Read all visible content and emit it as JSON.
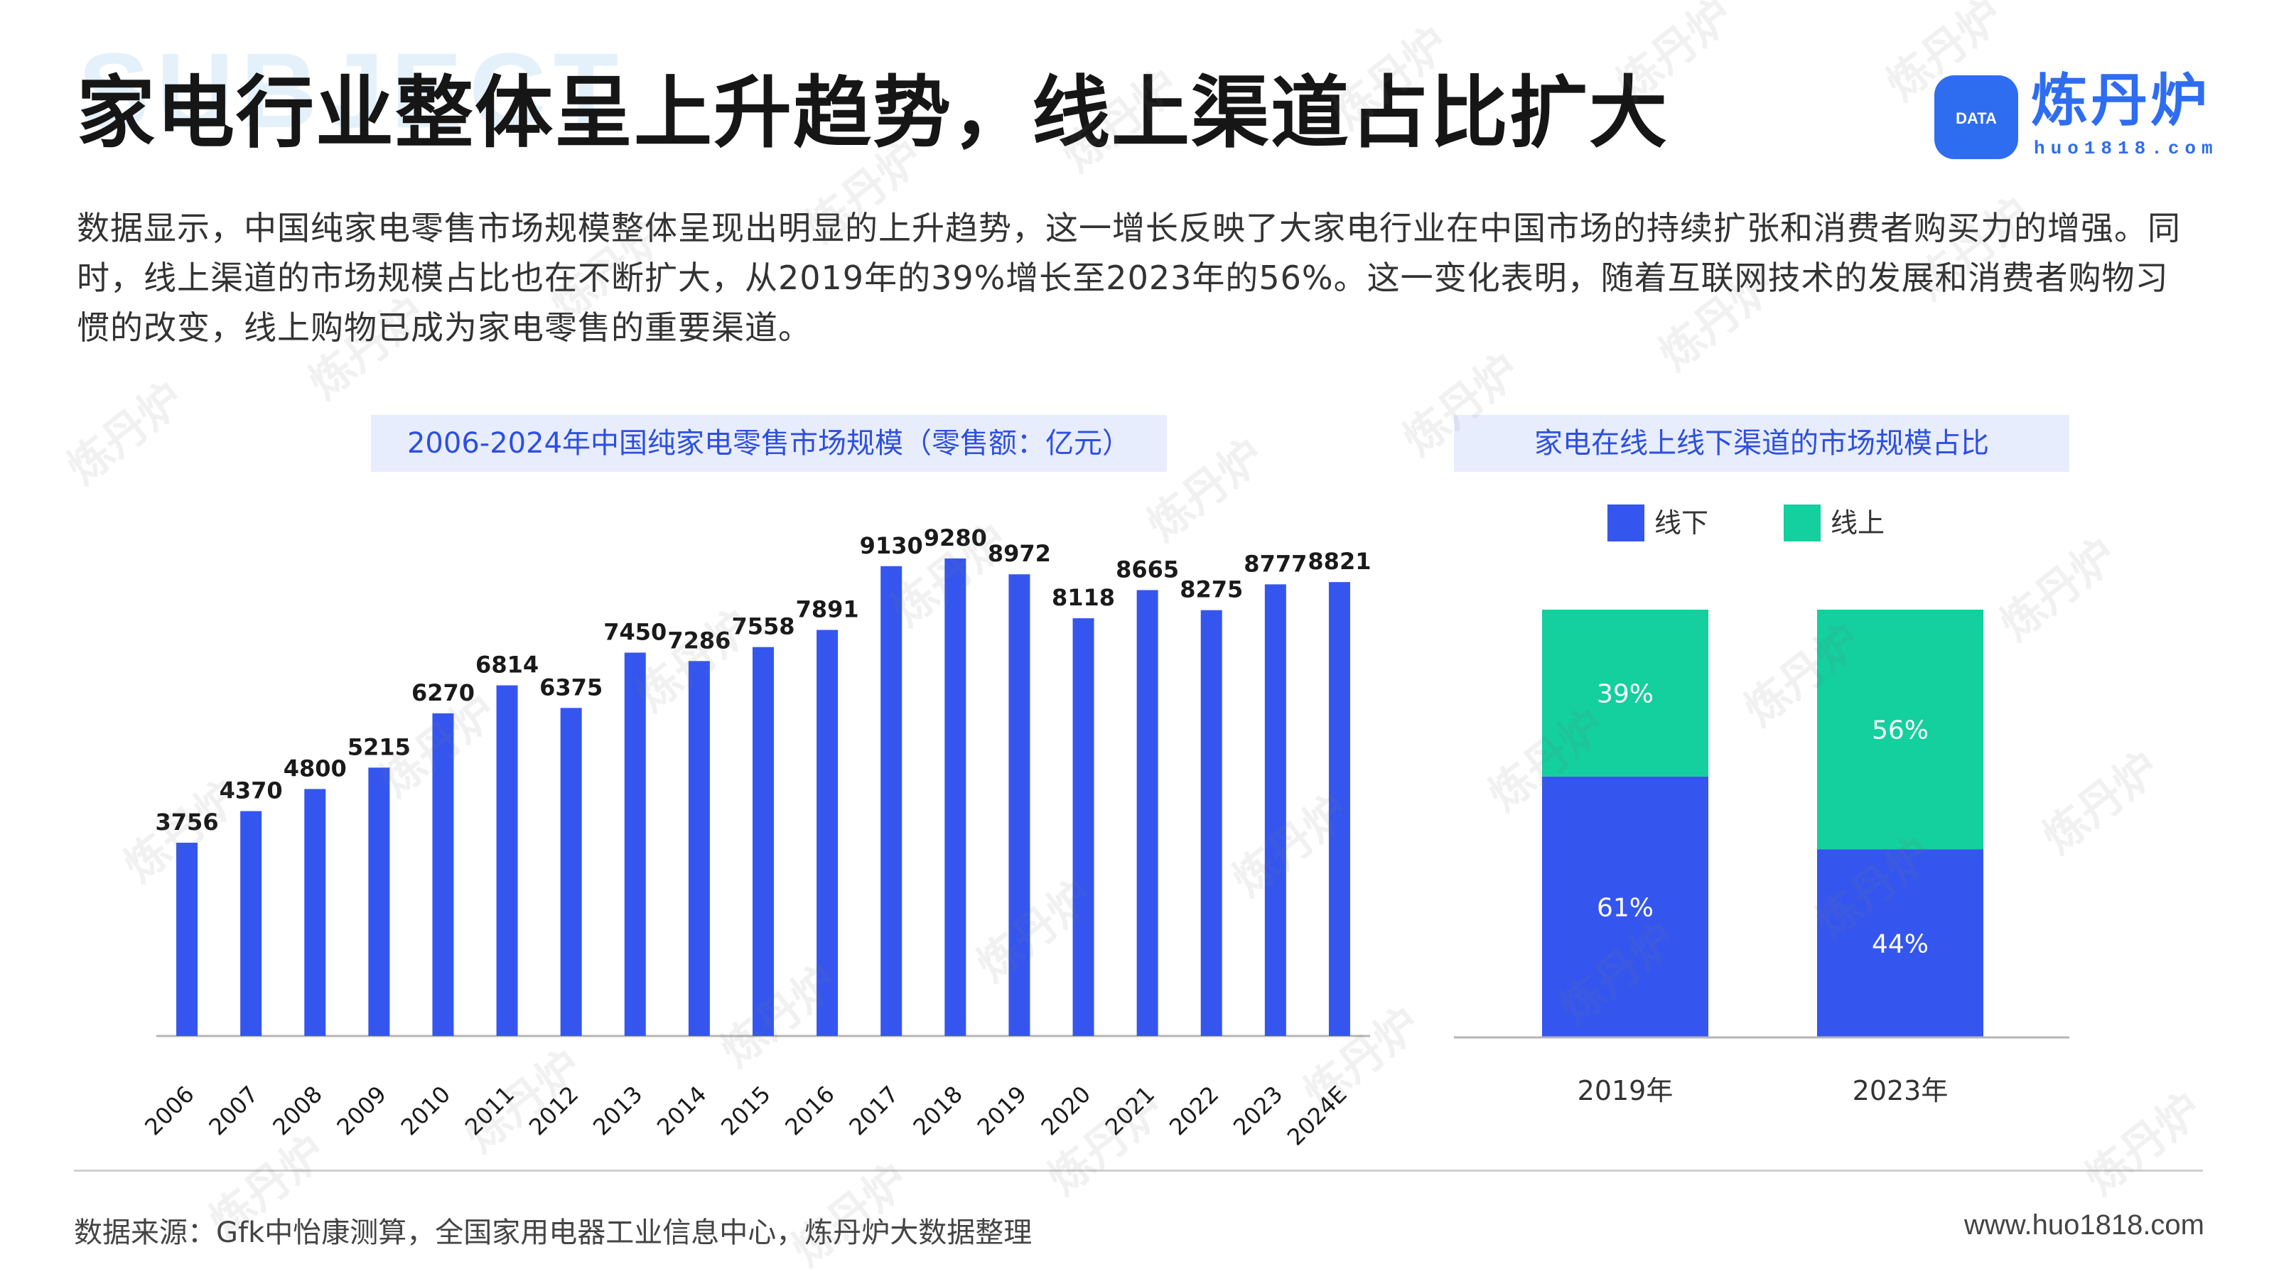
{
  "header": {
    "background_word": "SUBJECT",
    "title": "家电行业整体呈上升趋势，线上渠道占比扩大"
  },
  "logo": {
    "badge_text": "DATA",
    "name": "炼丹炉",
    "url": "huo1818.com"
  },
  "description": "数据显示，中国纯家电零售市场规模整体呈现出明显的上升趋势，这一增长反映了大家电行业在中国市场的持续扩张和消费者购买力的增强。同时，线上渠道的市场规模占比也在不断扩大，从2019年的39%增长至2023年的56%。这一变化表明，随着互联网技术的发展和消费者购物习惯的改变，线上购物已成为家电零售的重要渠道。",
  "footer": {
    "source": "数据来源：Gfk中怡康测算，全国家用电器工业信息中心，炼丹炉大数据整理",
    "site": "www.huo1818.com"
  },
  "watermark": "炼丹炉",
  "chart_data": [
    {
      "type": "bar",
      "title": "2006-2024年中国纯家电零售市场规模（零售额：亿元）",
      "categories": [
        "2006",
        "2007",
        "2008",
        "2009",
        "2010",
        "2011",
        "2012",
        "2013",
        "2014",
        "2015",
        "2016",
        "2017",
        "2018",
        "2019",
        "2020",
        "2021",
        "2022",
        "2023",
        "2024E"
      ],
      "values": [
        3756,
        4370,
        4800,
        5215,
        6270,
        6814,
        6375,
        7450,
        7286,
        7558,
        7891,
        9130,
        9280,
        8972,
        8118,
        8665,
        8275,
        8777,
        8821
      ],
      "ylim": [
        0,
        9500
      ],
      "color": "#3556ee",
      "grid": false,
      "data_labels": true
    },
    {
      "type": "bar",
      "stacked": true,
      "title": "家电在线上线下渠道的市场规模占比",
      "categories": [
        "2019年",
        "2023年"
      ],
      "series": [
        {
          "name": "线下",
          "values": [
            61,
            44
          ],
          "labels": [
            "61%",
            "44%"
          ],
          "color": "#3556ee"
        },
        {
          "name": "线上",
          "values": [
            39,
            56
          ],
          "labels": [
            "39%",
            "56%"
          ],
          "color": "#14cf9e"
        }
      ],
      "ylim": [
        0,
        100
      ],
      "legend": "top"
    }
  ]
}
